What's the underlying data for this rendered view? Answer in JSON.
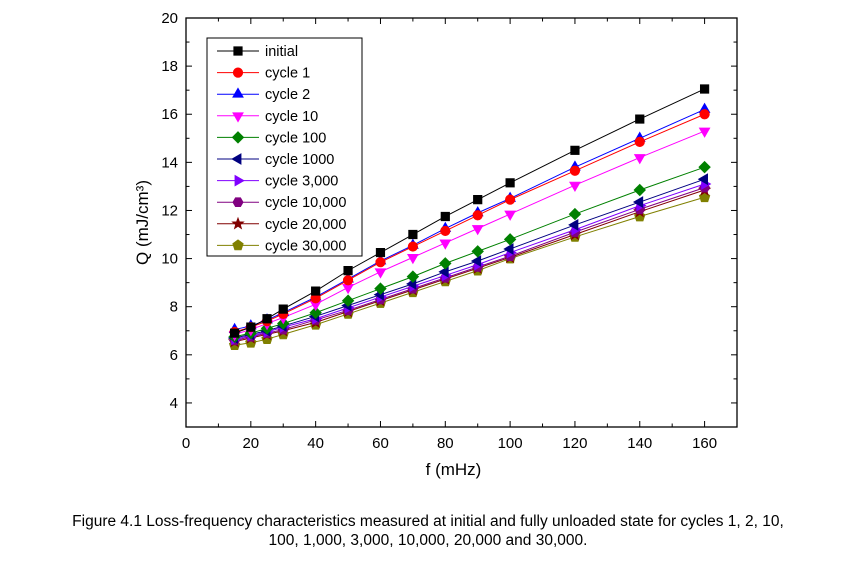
{
  "chart_data": {
    "type": "line",
    "xlabel": "f (mHz)",
    "ylabel": "Q (mJ/cm³)",
    "xlim": [
      0,
      170
    ],
    "ylim": [
      3,
      20
    ],
    "xticks": [
      0,
      20,
      40,
      60,
      80,
      100,
      120,
      140,
      160
    ],
    "yticks": [
      4,
      6,
      8,
      10,
      12,
      14,
      16,
      18,
      20
    ],
    "grid": false,
    "legend": "top-left",
    "x": [
      15,
      20,
      25,
      30,
      40,
      50,
      60,
      70,
      80,
      90,
      100,
      120,
      140,
      160
    ],
    "series": [
      {
        "name": "initial",
        "color": "#000000",
        "marker": "square",
        "values": [
          6.9,
          7.15,
          7.5,
          7.9,
          8.65,
          9.5,
          10.25,
          11.0,
          11.75,
          12.45,
          13.15,
          14.5,
          15.8,
          17.05
        ]
      },
      {
        "name": "cycle 1",
        "color": "#ff0000",
        "marker": "circle",
        "values": [
          6.95,
          7.15,
          7.4,
          7.7,
          8.35,
          9.1,
          9.85,
          10.5,
          11.15,
          11.8,
          12.45,
          13.65,
          14.85,
          16.0
        ]
      },
      {
        "name": "cycle 2",
        "color": "#0000ff",
        "marker": "triangle-up",
        "values": [
          7.05,
          7.2,
          7.45,
          7.75,
          8.4,
          9.15,
          9.9,
          10.55,
          11.25,
          11.9,
          12.5,
          13.8,
          15.0,
          16.2
        ]
      },
      {
        "name": "cycle 10",
        "color": "#ff00ff",
        "marker": "triangle-down",
        "values": [
          6.85,
          7.05,
          7.3,
          7.55,
          8.1,
          8.8,
          9.45,
          10.05,
          10.65,
          11.25,
          11.85,
          13.05,
          14.2,
          15.3
        ]
      },
      {
        "name": "cycle 100",
        "color": "#008000",
        "marker": "diamond",
        "values": [
          6.75,
          6.9,
          7.1,
          7.3,
          7.75,
          8.25,
          8.75,
          9.25,
          9.8,
          10.3,
          10.8,
          11.85,
          12.85,
          13.8
        ]
      },
      {
        "name": "cycle 1000",
        "color": "#000080",
        "marker": "triangle-left",
        "values": [
          6.7,
          6.85,
          7.0,
          7.2,
          7.6,
          8.05,
          8.5,
          8.95,
          9.45,
          9.9,
          10.4,
          11.4,
          12.35,
          13.3
        ]
      },
      {
        "name": "cycle 3,000",
        "color": "#8000ff",
        "marker": "triangle-right",
        "values": [
          6.65,
          6.8,
          6.95,
          7.15,
          7.5,
          7.95,
          8.4,
          8.85,
          9.3,
          9.75,
          10.25,
          11.2,
          12.2,
          13.1
        ]
      },
      {
        "name": "cycle 10,000",
        "color": "#800080",
        "marker": "hexagon",
        "values": [
          6.6,
          6.75,
          6.9,
          7.05,
          7.45,
          7.85,
          8.3,
          8.75,
          9.2,
          9.65,
          10.1,
          11.1,
          12.05,
          12.95
        ]
      },
      {
        "name": "cycle 20,000",
        "color": "#800000",
        "marker": "star",
        "values": [
          6.55,
          6.7,
          6.85,
          7.0,
          7.35,
          7.8,
          8.25,
          8.7,
          9.15,
          9.6,
          10.05,
          11.0,
          11.95,
          12.85
        ]
      },
      {
        "name": "cycle 30,000",
        "color": "#808000",
        "marker": "pentagon",
        "values": [
          6.4,
          6.5,
          6.65,
          6.85,
          7.25,
          7.7,
          8.15,
          8.6,
          9.05,
          9.5,
          10.0,
          10.9,
          11.75,
          12.55
        ]
      }
    ]
  },
  "caption": {
    "line1": "Figure 4.1 Loss-frequency characteristics measured at initial and fully unloaded state for cycles 1, 2, 10,",
    "line2": "100, 1,000, 3,000, 10,000, 20,000 and 30,000."
  }
}
